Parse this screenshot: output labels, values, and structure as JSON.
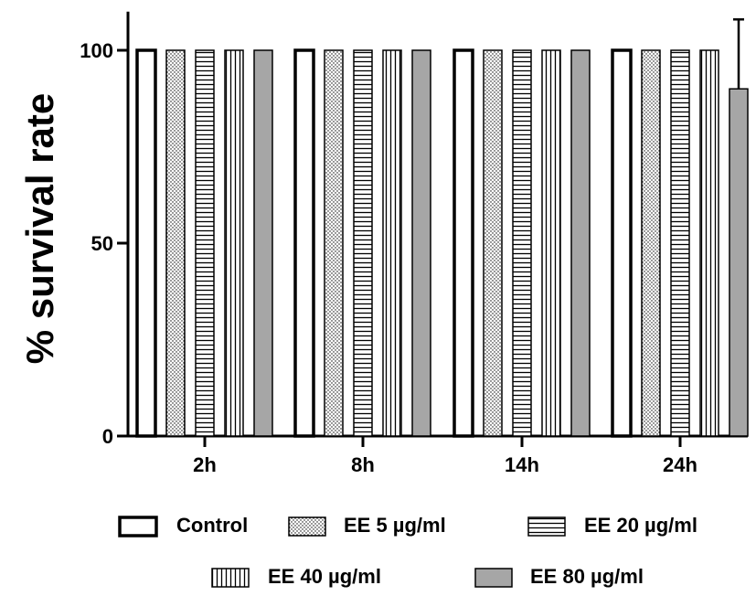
{
  "chart_data": {
    "type": "bar",
    "categories": [
      "2h",
      "8h",
      "14h",
      "24h"
    ],
    "ylabel": "% survival rate",
    "ylim": [
      0,
      110
    ],
    "yticks": [
      0,
      50,
      100
    ],
    "grid": false,
    "legend_position": "bottom",
    "series": [
      {
        "name": "Control",
        "pattern": "open",
        "color": "#ffffff",
        "values": [
          100,
          100,
          100,
          100
        ]
      },
      {
        "name": "EE 5 µg/ml",
        "pattern": "dots",
        "color": "#ffffff",
        "values": [
          100,
          100,
          100,
          100
        ]
      },
      {
        "name": "EE 20 µg/ml",
        "pattern": "horizontal-lines",
        "color": "#ffffff",
        "values": [
          100,
          100,
          100,
          100
        ]
      },
      {
        "name": "EE 40 µg/ml",
        "pattern": "vertical-lines",
        "color": "#ffffff",
        "values": [
          100,
          100,
          100,
          100
        ]
      },
      {
        "name": "EE 80 µg/ml",
        "pattern": "solid",
        "color": "#a6a6a6",
        "values": [
          100,
          100,
          100,
          90
        ],
        "error_upper": [
          0,
          0,
          0,
          18
        ]
      }
    ]
  }
}
